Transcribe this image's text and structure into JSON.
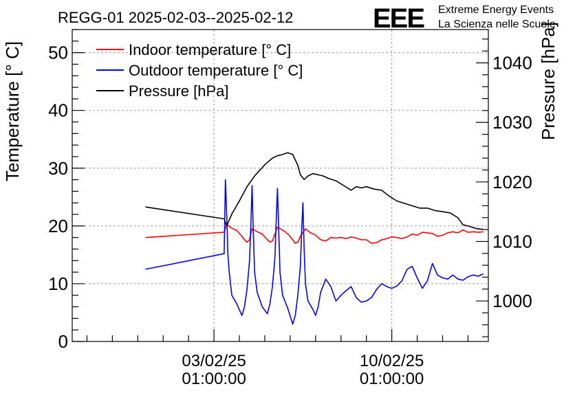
{
  "chart_data": {
    "type": "line",
    "title": "REGG-01 2025-02-03--2025-02-12",
    "logo": {
      "mark": "EEE",
      "line1": "Extreme Energy Events",
      "line2": "La Scienza nelle Scuole",
      "color": "#1a1aff"
    },
    "ylabel": "Temperature [° C]",
    "y2label": "Pressure [hPa]",
    "ylim": [
      0,
      54
    ],
    "y2lim": [
      993.2,
      1045.6
    ],
    "yticks": [
      0,
      10,
      20,
      30,
      40,
      50
    ],
    "y2ticks": [
      1000,
      1010,
      1020,
      1030,
      1040
    ],
    "xlim": [
      -5.58,
      10.8
    ],
    "xticks": [
      {
        "x": 0,
        "label": "03/02/25",
        "label2": "01:00:00"
      },
      {
        "x": 7,
        "label": "10/02/25",
        "label2": "01:00:00"
      }
    ],
    "x_unit": "days since 03/02/25 01:00:00",
    "grid": true,
    "legend_position": "top-left",
    "series": [
      {
        "name": "Indoor temperature [° C]",
        "color": "#ff0000",
        "axis": "left",
        "x": [
          -2.7,
          0.4,
          0.5,
          0.7,
          0.9,
          1.1,
          1.2,
          1.3,
          1.4,
          1.5,
          1.7,
          1.9,
          2.1,
          2.2,
          2.3,
          2.4,
          2.5,
          2.8,
          2.95,
          3.1,
          3.2,
          3.3,
          3.4,
          3.6,
          3.8,
          4.0,
          4.2,
          4.4,
          4.6,
          4.8,
          5.0,
          5.2,
          5.4,
          5.6,
          5.8,
          6.0,
          6.2,
          6.4,
          6.6,
          6.8,
          7.0,
          7.2,
          7.4,
          7.6,
          7.8,
          8.0,
          8.2,
          8.4,
          8.6,
          8.8,
          9.0,
          9.2,
          9.4,
          9.6,
          9.8,
          10.0,
          10.2,
          10.4,
          10.6
        ],
        "y": [
          18.0,
          18.9,
          20.3,
          19.6,
          19.2,
          18.2,
          17.6,
          17.2,
          17.6,
          19.5,
          19.0,
          18.6,
          17.6,
          17.2,
          17.4,
          18.6,
          19.8,
          19.0,
          18.4,
          17.6,
          17.0,
          17.2,
          18.2,
          19.5,
          18.8,
          18.4,
          17.6,
          17.4,
          18.0,
          17.9,
          18.0,
          17.8,
          18.1,
          17.9,
          17.6,
          17.6,
          17.0,
          17.1,
          17.6,
          17.8,
          18.1,
          18.0,
          17.8,
          18.1,
          18.6,
          18.4,
          18.9,
          18.8,
          18.7,
          18.2,
          18.4,
          18.8,
          19.0,
          18.8,
          19.3,
          18.9,
          19.0,
          18.9,
          19.0
        ]
      },
      {
        "name": "Outdoor temperature [° C]",
        "color": "#0000ff",
        "axis": "left",
        "x": [
          -2.7,
          0.4,
          0.45,
          0.5,
          0.55,
          0.6,
          0.7,
          0.9,
          1.1,
          1.2,
          1.3,
          1.4,
          1.45,
          1.5,
          1.55,
          1.6,
          1.7,
          1.9,
          2.1,
          2.2,
          2.3,
          2.4,
          2.45,
          2.5,
          2.55,
          2.6,
          2.7,
          2.9,
          3.1,
          3.2,
          3.3,
          3.4,
          3.45,
          3.5,
          3.55,
          3.6,
          3.7,
          3.9,
          4.0,
          4.1,
          4.2,
          4.4,
          4.6,
          4.8,
          5.0,
          5.2,
          5.4,
          5.6,
          5.8,
          6.0,
          6.2,
          6.4,
          6.6,
          6.8,
          7.0,
          7.2,
          7.4,
          7.6,
          7.8,
          8.0,
          8.2,
          8.4,
          8.6,
          8.8,
          9.0,
          9.2,
          9.4,
          9.6,
          9.8,
          10.0,
          10.2,
          10.4,
          10.6
        ],
        "y": [
          12.5,
          15.2,
          28.0,
          22.0,
          15.0,
          12.0,
          8.0,
          6.5,
          4.5,
          6.0,
          9.0,
          14.0,
          20.0,
          27.0,
          19.0,
          12.0,
          8.5,
          6.0,
          4.8,
          6.5,
          9.5,
          14.5,
          21.0,
          26.5,
          19.0,
          12.0,
          8.0,
          5.8,
          3.0,
          4.5,
          8.0,
          13.0,
          19.0,
          24.0,
          16.0,
          10.0,
          7.0,
          5.5,
          4.5,
          6.0,
          8.5,
          10.8,
          9.5,
          7.0,
          8.0,
          8.8,
          9.5,
          7.6,
          6.8,
          7.0,
          7.6,
          9.0,
          10.0,
          9.5,
          9.2,
          9.6,
          10.5,
          12.5,
          13.0,
          11.0,
          9.2,
          10.5,
          13.5,
          11.5,
          11.0,
          10.8,
          11.5,
          10.8,
          10.6,
          11.2,
          11.5,
          11.3,
          11.7
        ]
      },
      {
        "name": "Pressure [hPa]",
        "color": "#000000",
        "axis": "right",
        "x": [
          -2.7,
          0.4,
          0.5,
          0.7,
          1.0,
          1.3,
          1.6,
          2.0,
          2.3,
          2.5,
          2.7,
          2.9,
          3.1,
          3.3,
          3.4,
          3.55,
          3.7,
          3.9,
          4.1,
          4.3,
          4.5,
          4.8,
          5.1,
          5.4,
          5.6,
          5.8,
          6.0,
          6.3,
          6.6,
          6.9,
          7.2,
          7.5,
          7.8,
          8.1,
          8.4,
          8.7,
          9.0,
          9.3,
          9.6,
          9.8,
          10.0,
          10.3,
          10.6
        ],
        "y": [
          1015.8,
          1013.8,
          1012.6,
          1014.6,
          1016.8,
          1019.2,
          1021.0,
          1022.9,
          1024.0,
          1024.4,
          1024.6,
          1024.9,
          1024.6,
          1022.8,
          1021.2,
          1020.4,
          1021.0,
          1021.4,
          1021.2,
          1021.0,
          1020.6,
          1020.2,
          1019.4,
          1018.6,
          1019.2,
          1019.0,
          1019.2,
          1018.8,
          1018.6,
          1017.6,
          1016.8,
          1016.4,
          1016.0,
          1015.6,
          1015.6,
          1015.2,
          1015.0,
          1014.8,
          1014.0,
          1012.8,
          1012.6,
          1012.2,
          1012.0
        ]
      }
    ]
  }
}
